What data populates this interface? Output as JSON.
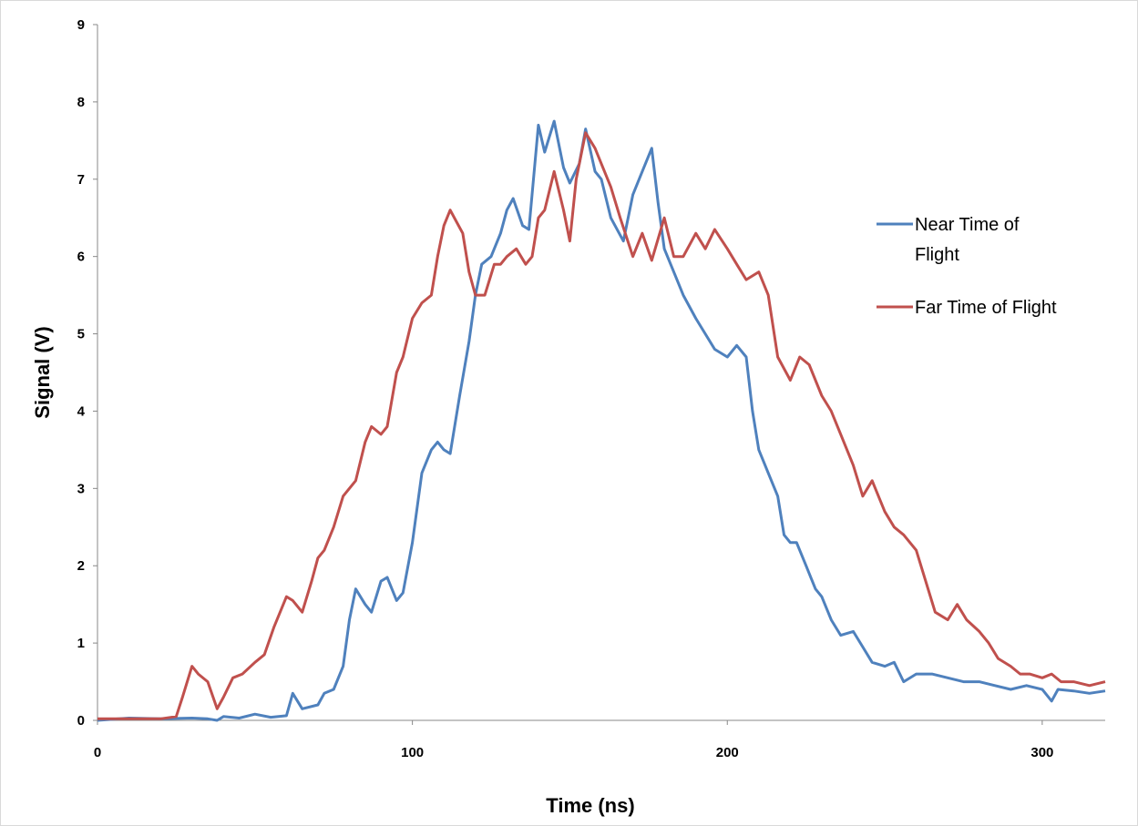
{
  "chart_data": {
    "type": "line",
    "title": "",
    "xlabel": "Time (ns)",
    "ylabel": "Signal (V)",
    "xlim": [
      0,
      320
    ],
    "ylim": [
      0,
      9
    ],
    "x_ticks": [
      0,
      100,
      200,
      300
    ],
    "y_ticks": [
      0,
      1,
      2,
      3,
      4,
      5,
      6,
      7,
      8,
      9
    ],
    "grid": false,
    "legend_position": "right",
    "series": [
      {
        "name": "Near Time of Flight",
        "color": "#4F81BD",
        "x": [
          0,
          10,
          20,
          30,
          35,
          38,
          40,
          45,
          50,
          55,
          60,
          62,
          65,
          70,
          72,
          75,
          78,
          80,
          82,
          85,
          87,
          90,
          92,
          95,
          97,
          100,
          103,
          106,
          108,
          110,
          112,
          115,
          118,
          120,
          122,
          125,
          128,
          130,
          132,
          135,
          137,
          140,
          142,
          145,
          148,
          150,
          153,
          155,
          158,
          160,
          163,
          167,
          170,
          173,
          176,
          178,
          180,
          183,
          186,
          190,
          193,
          196,
          200,
          203,
          206,
          208,
          210,
          213,
          216,
          218,
          220,
          222,
          225,
          228,
          230,
          233,
          236,
          240,
          243,
          246,
          250,
          253,
          256,
          260,
          265,
          270,
          275,
          280,
          285,
          290,
          295,
          300,
          303,
          305,
          310,
          315,
          320
        ],
        "y": [
          0,
          0.03,
          0.02,
          0.03,
          0.02,
          0,
          0.05,
          0.03,
          0.08,
          0.04,
          0.06,
          0.35,
          0.15,
          0.2,
          0.35,
          0.4,
          0.7,
          1.3,
          1.7,
          1.5,
          1.4,
          1.8,
          1.85,
          1.55,
          1.65,
          2.3,
          3.2,
          3.5,
          3.6,
          3.5,
          3.45,
          4.2,
          4.9,
          5.5,
          5.9,
          6.0,
          6.3,
          6.6,
          6.75,
          6.4,
          6.35,
          7.7,
          7.35,
          7.75,
          7.15,
          6.95,
          7.2,
          7.65,
          7.1,
          7.0,
          6.5,
          6.2,
          6.8,
          7.1,
          7.4,
          6.7,
          6.1,
          5.8,
          5.5,
          5.2,
          5.0,
          4.8,
          4.7,
          4.85,
          4.7,
          4.0,
          3.5,
          3.2,
          2.9,
          2.4,
          2.3,
          2.3,
          2.0,
          1.7,
          1.6,
          1.3,
          1.1,
          1.15,
          0.95,
          0.75,
          0.7,
          0.75,
          0.5,
          0.6,
          0.6,
          0.55,
          0.5,
          0.5,
          0.45,
          0.4,
          0.45,
          0.4,
          0.25,
          0.4,
          0.38,
          0.35,
          0.38
        ]
      },
      {
        "name": "Far Time of Flight",
        "color": "#C0504D",
        "x": [
          0,
          10,
          20,
          25,
          27,
          30,
          32,
          35,
          38,
          40,
          43,
          46,
          50,
          53,
          56,
          60,
          62,
          65,
          68,
          70,
          72,
          75,
          78,
          80,
          82,
          85,
          87,
          90,
          92,
          95,
          97,
          100,
          103,
          106,
          108,
          110,
          112,
          114,
          116,
          118,
          120,
          123,
          126,
          128,
          130,
          133,
          136,
          138,
          140,
          142,
          145,
          148,
          150,
          152,
          155,
          158,
          160,
          163,
          166,
          170,
          173,
          176,
          180,
          183,
          186,
          190,
          193,
          196,
          200,
          203,
          206,
          210,
          213,
          216,
          220,
          223,
          226,
          230,
          233,
          236,
          240,
          243,
          246,
          250,
          253,
          256,
          260,
          263,
          266,
          270,
          273,
          276,
          280,
          283,
          286,
          290,
          293,
          296,
          300,
          303,
          306,
          310,
          315,
          320
        ],
        "y": [
          0.02,
          0.02,
          0.02,
          0.05,
          0.3,
          0.7,
          0.6,
          0.5,
          0.15,
          0.3,
          0.55,
          0.6,
          0.75,
          0.85,
          1.2,
          1.6,
          1.55,
          1.4,
          1.8,
          2.1,
          2.2,
          2.5,
          2.9,
          3.0,
          3.1,
          3.6,
          3.8,
          3.7,
          3.8,
          4.5,
          4.7,
          5.2,
          5.4,
          5.5,
          6.0,
          6.4,
          6.6,
          6.45,
          6.3,
          5.8,
          5.5,
          5.5,
          5.9,
          5.9,
          6.0,
          6.1,
          5.9,
          6.0,
          6.5,
          6.6,
          7.1,
          6.6,
          6.2,
          7.0,
          7.6,
          7.4,
          7.2,
          6.9,
          6.5,
          6.0,
          6.3,
          5.95,
          6.5,
          6.0,
          6.0,
          6.3,
          6.1,
          6.35,
          6.1,
          5.9,
          5.7,
          5.8,
          5.5,
          4.7,
          4.4,
          4.7,
          4.6,
          4.2,
          4.0,
          3.7,
          3.3,
          2.9,
          3.1,
          2.7,
          2.5,
          2.4,
          2.2,
          1.8,
          1.4,
          1.3,
          1.5,
          1.3,
          1.15,
          1.0,
          0.8,
          0.7,
          0.6,
          0.6,
          0.55,
          0.6,
          0.5,
          0.5,
          0.45,
          0.5
        ]
      }
    ]
  }
}
